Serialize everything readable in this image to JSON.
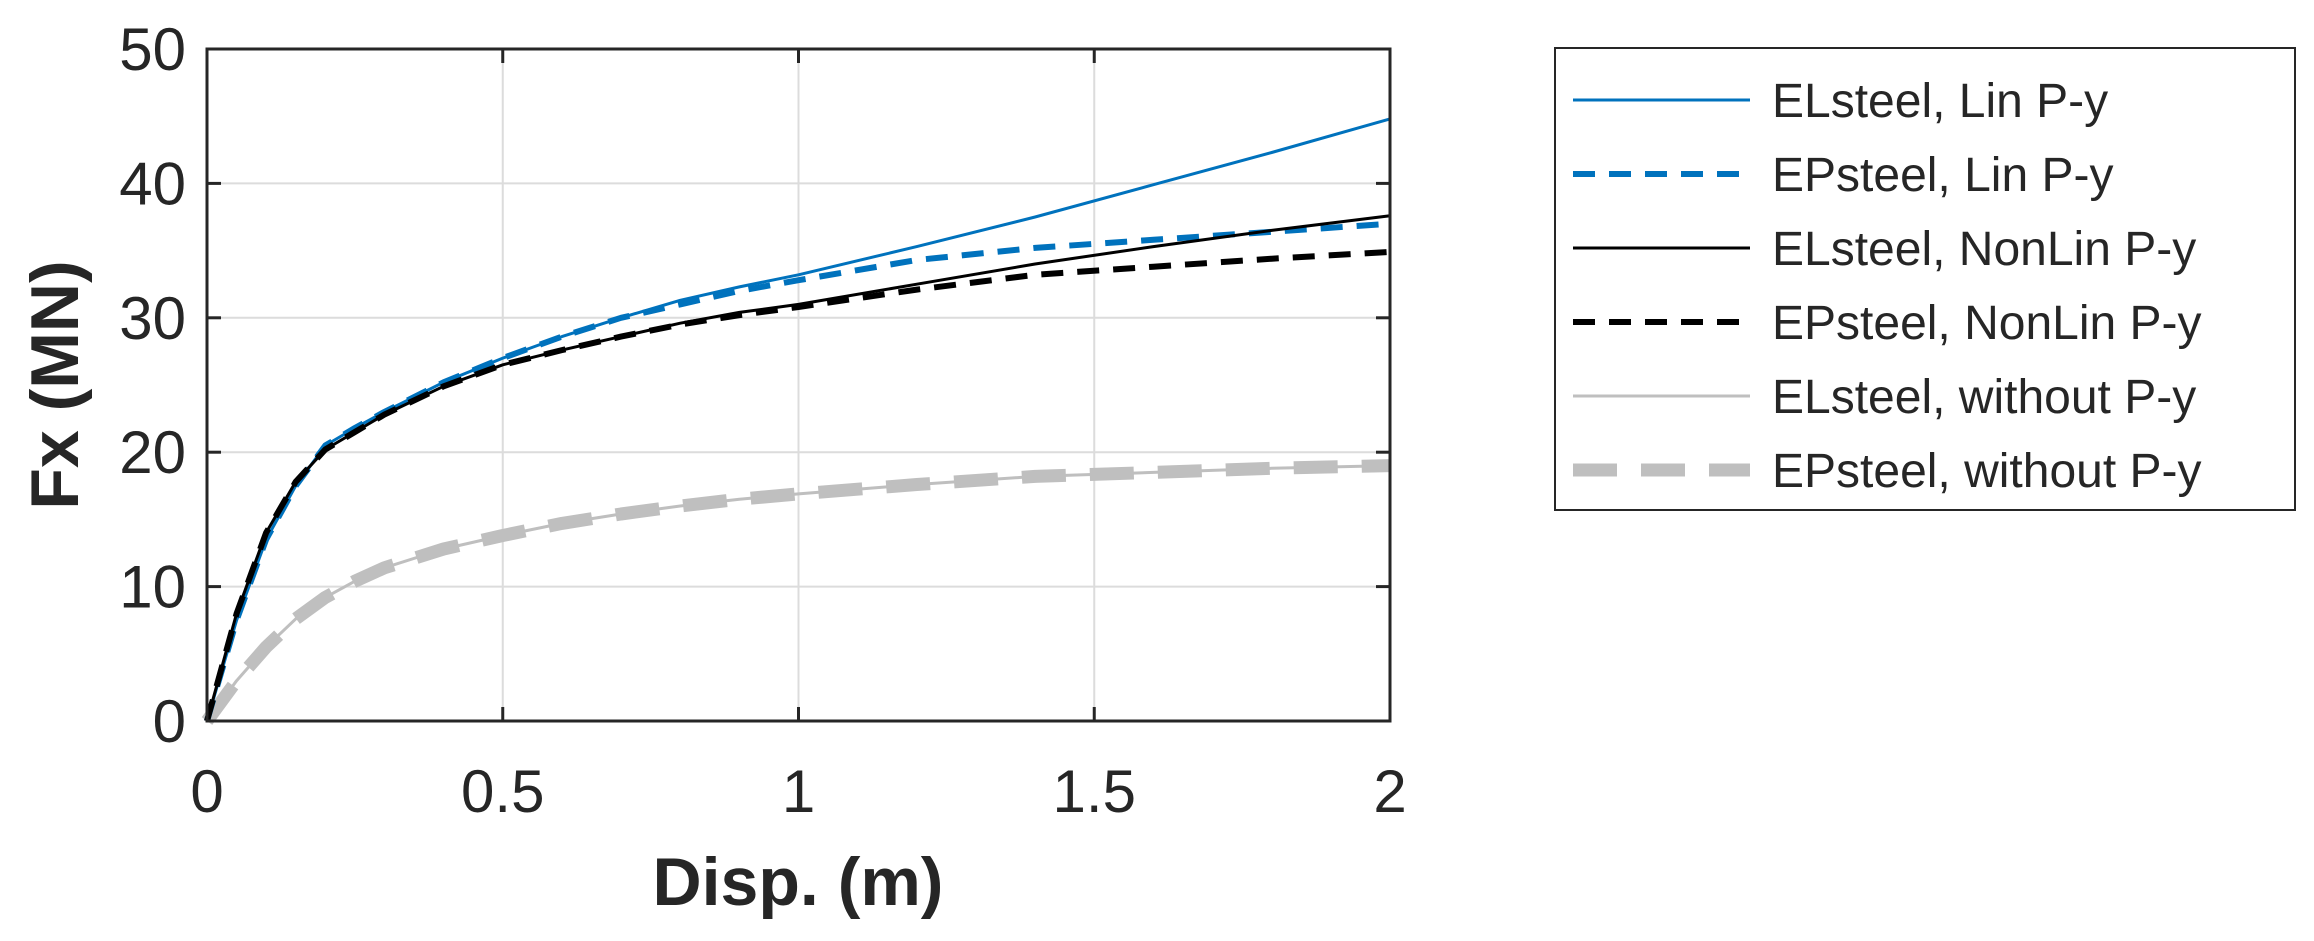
{
  "chart_data": {
    "type": "line",
    "title": "",
    "xlabel": "Disp. (m)",
    "ylabel": "Fx (MN)",
    "xlim": [
      0,
      2
    ],
    "ylim": [
      0,
      50
    ],
    "xticks": [
      0,
      0.5,
      1,
      1.5,
      2
    ],
    "xtick_labels": [
      "0",
      "0.5",
      "1",
      "1.5",
      "2"
    ],
    "yticks": [
      0,
      10,
      20,
      30,
      40,
      50
    ],
    "ytick_labels": [
      "0",
      "10",
      "20",
      "30",
      "40",
      "50"
    ],
    "grid": true,
    "legend_position": "outside-right",
    "series": [
      {
        "name": "ELsteel, Lin P-y",
        "color": "#0072BD",
        "style": "solid",
        "x": [
          0,
          0.05,
          0.1,
          0.15,
          0.2,
          0.25,
          0.3,
          0.4,
          0.5,
          0.6,
          0.7,
          0.8,
          0.9,
          1.0,
          1.2,
          1.4,
          1.6,
          1.8,
          2.0
        ],
        "y": [
          0,
          7.5,
          13.5,
          17.5,
          20.5,
          21.8,
          23.0,
          25.2,
          27.0,
          28.6,
          30.0,
          31.3,
          32.3,
          33.2,
          35.3,
          37.5,
          39.9,
          42.3,
          44.8
        ]
      },
      {
        "name": "EPsteel, Lin P-y",
        "color": "#0072BD",
        "style": "dashed",
        "x": [
          0,
          0.05,
          0.1,
          0.15,
          0.2,
          0.25,
          0.3,
          0.4,
          0.5,
          0.6,
          0.7,
          0.8,
          0.9,
          1.0,
          1.2,
          1.4,
          1.6,
          1.8,
          2.0
        ],
        "y": [
          0,
          7.5,
          13.5,
          17.5,
          20.5,
          21.8,
          23.0,
          25.2,
          27.0,
          28.6,
          30.0,
          31.0,
          32.0,
          32.8,
          34.3,
          35.2,
          35.8,
          36.4,
          37.0
        ]
      },
      {
        "name": "ELsteel, NonLin P-y",
        "color": "#000000",
        "style": "solid",
        "x": [
          0,
          0.05,
          0.1,
          0.15,
          0.2,
          0.25,
          0.3,
          0.4,
          0.5,
          0.6,
          0.7,
          0.8,
          0.9,
          1.0,
          1.2,
          1.4,
          1.6,
          1.8,
          2.0
        ],
        "y": [
          0,
          8.0,
          14.0,
          17.8,
          20.2,
          21.5,
          22.8,
          24.9,
          26.5,
          27.6,
          28.6,
          29.6,
          30.4,
          31.0,
          32.5,
          34.0,
          35.3,
          36.5,
          37.6
        ]
      },
      {
        "name": "EPsteel, NonLin P-y",
        "color": "#000000",
        "style": "dashed",
        "x": [
          0,
          0.05,
          0.1,
          0.15,
          0.2,
          0.25,
          0.3,
          0.4,
          0.5,
          0.6,
          0.7,
          0.8,
          0.9,
          1.0,
          1.2,
          1.4,
          1.6,
          1.8,
          2.0
        ],
        "y": [
          0,
          8.0,
          14.0,
          17.8,
          20.2,
          21.5,
          22.8,
          24.9,
          26.5,
          27.6,
          28.6,
          29.5,
          30.2,
          30.8,
          32.1,
          33.2,
          33.8,
          34.4,
          34.9
        ]
      },
      {
        "name": "ELsteel, without P-y",
        "color": "#BFBFBF",
        "style": "solid",
        "x": [
          0,
          0.05,
          0.1,
          0.15,
          0.2,
          0.25,
          0.3,
          0.4,
          0.5,
          0.6,
          0.7,
          0.8,
          0.9,
          1.0,
          1.2,
          1.4,
          1.6,
          1.8,
          2.0
        ],
        "y": [
          0,
          3.0,
          5.5,
          7.6,
          9.2,
          10.4,
          11.4,
          12.8,
          13.8,
          14.7,
          15.4,
          16.0,
          16.5,
          16.9,
          17.6,
          18.2,
          18.5,
          18.8,
          19.0
        ]
      },
      {
        "name": "EPsteel, without P-y",
        "color": "#BFBFBF",
        "style": "wide-dashed",
        "x": [
          0,
          0.05,
          0.1,
          0.15,
          0.2,
          0.25,
          0.3,
          0.4,
          0.5,
          0.6,
          0.7,
          0.8,
          0.9,
          1.0,
          1.2,
          1.4,
          1.6,
          1.8,
          2.0
        ],
        "y": [
          0,
          3.0,
          5.5,
          7.6,
          9.2,
          10.4,
          11.4,
          12.8,
          13.8,
          14.7,
          15.4,
          16.0,
          16.5,
          16.9,
          17.6,
          18.2,
          18.5,
          18.8,
          19.0
        ]
      }
    ]
  }
}
